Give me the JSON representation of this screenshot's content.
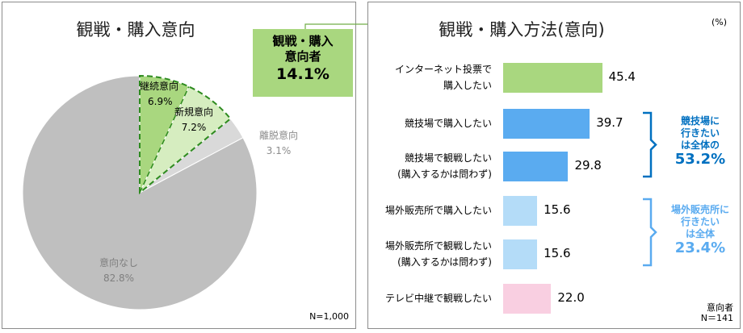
{
  "chart_data": [
    {
      "type": "pie",
      "title": "観戦・購入意向",
      "slices": [
        {
          "label": "継続意向",
          "value": 6.9,
          "display": "6.9%",
          "color": "#a9d77f"
        },
        {
          "label": "新規意向",
          "value": 7.2,
          "display": "7.2%",
          "color": "#d6edc0"
        },
        {
          "label": "離脱意向",
          "value": 3.1,
          "display": "3.1%",
          "color": "#d9d9d9"
        },
        {
          "label": "意向なし",
          "value": 82.8,
          "display": "82.8%",
          "color": "#bfbfbf"
        }
      ],
      "note": "N=1,000",
      "callout": {
        "line1": "観戦・購入",
        "line2": "意向者",
        "value": "14.1%"
      }
    },
    {
      "type": "bar",
      "orientation": "horizontal",
      "title": "観戦・購入方法(意向)",
      "unit": "(%)",
      "categories": [
        [
          "インターネット投票で",
          "購入したい"
        ],
        [
          "競技場で購入したい"
        ],
        [
          "競技場で観戦したい",
          "(購入するかは問わず)"
        ],
        [
          "場外販売所で購入したい"
        ],
        [
          "場外販売所で観戦したい",
          "(購入するかは問わず)"
        ],
        [
          "テレビ中継で観戦したい"
        ]
      ],
      "values": [
        45.4,
        39.7,
        29.8,
        15.6,
        15.6,
        22.0
      ],
      "value_labels": [
        "45.4",
        "39.7",
        "29.8",
        "15.6",
        "15.6",
        "22.0"
      ],
      "colors": [
        "#a9d77f",
        "#5aabf0",
        "#5aabf0",
        "#b4dcf8",
        "#b4dcf8",
        "#f9cfe1"
      ],
      "xlim": [
        0,
        100
      ],
      "brackets": [
        {
          "lines": [
            "競技場に",
            "行きたい",
            "は全体の"
          ],
          "value": "53.2%",
          "color": "#0070c0"
        },
        {
          "lines": [
            "場外販売所に",
            "行きたい",
            "は全体"
          ],
          "value": "23.4%",
          "color": "#5aabf0"
        }
      ],
      "note_line1": "意向者",
      "note_line2": "N＝141"
    }
  ],
  "colors": {
    "dash_outline": "#2e8b1f",
    "arrow": "#70ad47",
    "callout_bg": "#a9d77f"
  }
}
